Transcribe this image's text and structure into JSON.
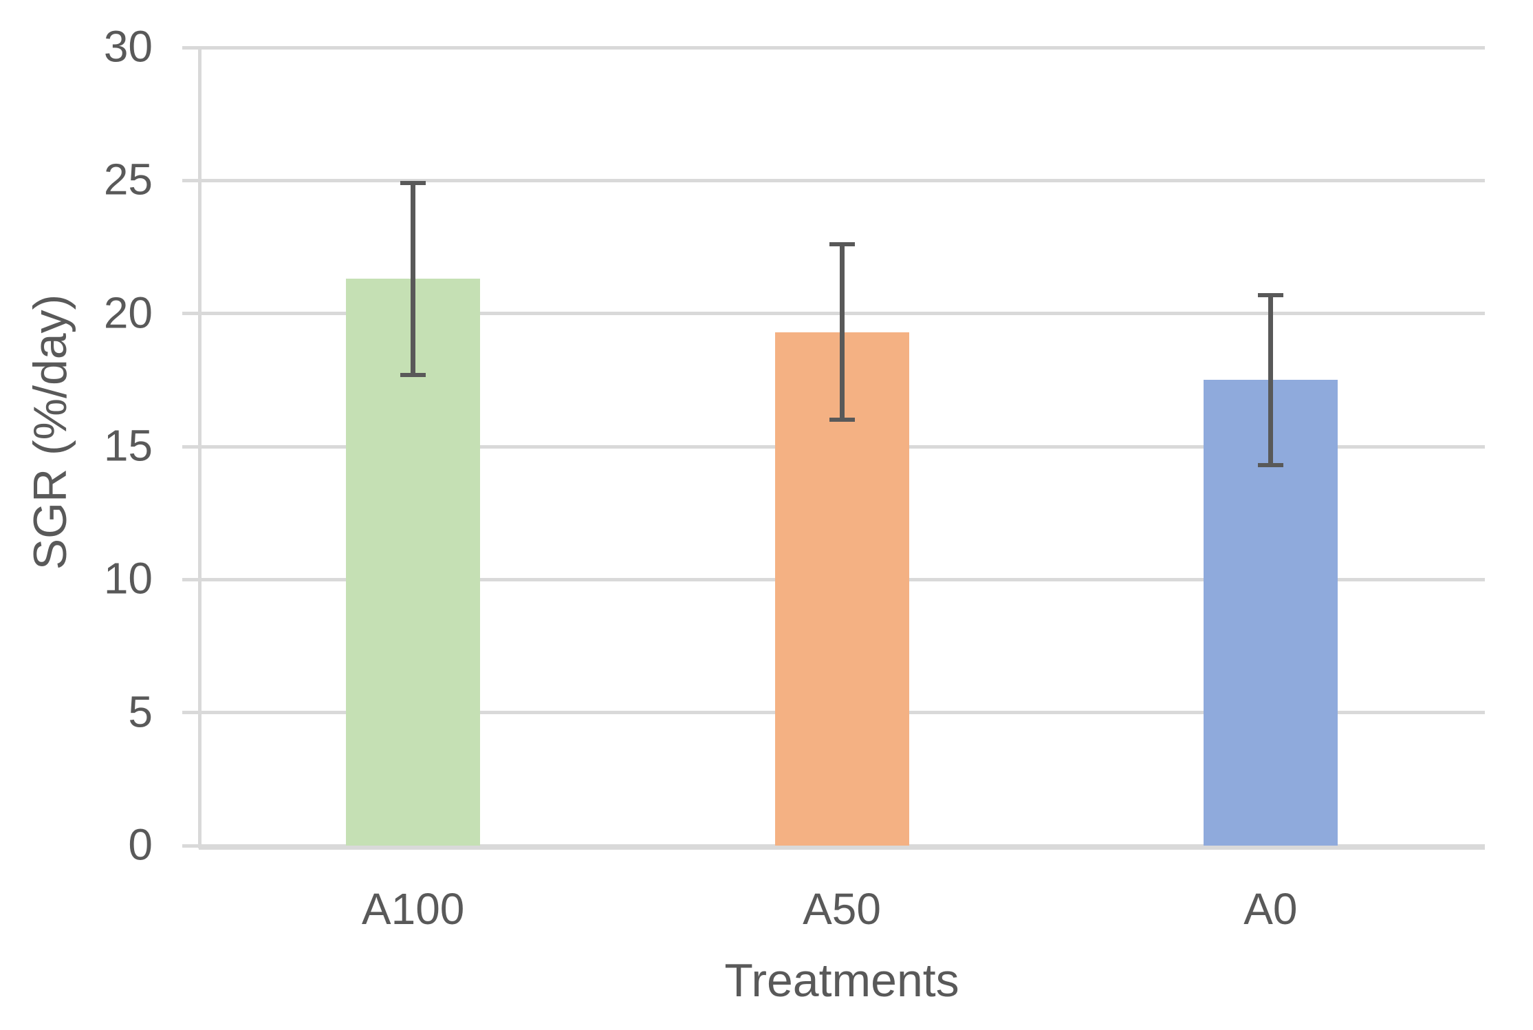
{
  "chart_data": {
    "type": "bar",
    "title": "",
    "xlabel": "Treatments",
    "ylabel": "SGR (%/day)",
    "categories": [
      "A100",
      "A50",
      "A0"
    ],
    "values": [
      21.3,
      19.3,
      17.5
    ],
    "errors": [
      3.6,
      3.3,
      3.2
    ],
    "error_bars": [
      {
        "low": 17.7,
        "high": 24.9
      },
      {
        "low": 16.0,
        "high": 22.6
      },
      {
        "low": 14.3,
        "high": 20.7
      }
    ],
    "bar_colors": [
      "#c5e0b4",
      "#f4b183",
      "#8faadc"
    ],
    "ylim": [
      0,
      30
    ],
    "yticks": [
      0,
      5,
      10,
      15,
      20,
      25,
      30
    ],
    "grid": "horizontal",
    "legend_position": "none",
    "gridline_color": "#d9d9d9",
    "error_bar_color": "#595959",
    "text_color": "#595959"
  }
}
